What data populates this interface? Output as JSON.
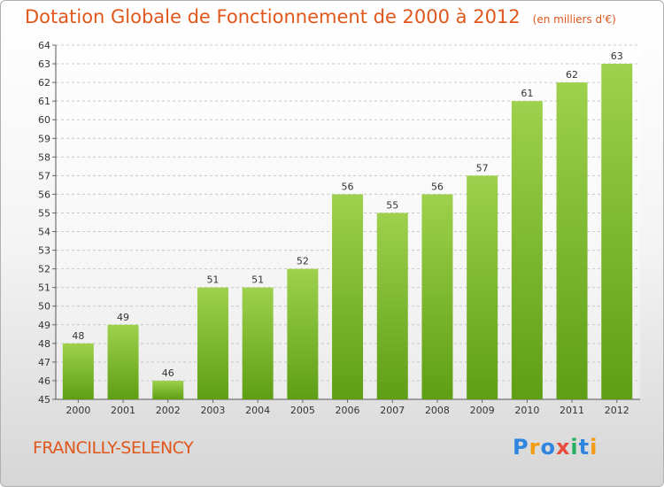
{
  "chart_data": {
    "type": "bar",
    "title": "Dotation Globale de Fonctionnement de 2000 à 2012",
    "subtitle": "(en milliers d'€)",
    "categories": [
      "2000",
      "2001",
      "2002",
      "2003",
      "2004",
      "2005",
      "2006",
      "2007",
      "2008",
      "2009",
      "2010",
      "2011",
      "2012"
    ],
    "values": [
      48,
      49,
      46,
      51,
      51,
      52,
      56,
      55,
      56,
      57,
      61,
      62,
      63
    ],
    "ylim": [
      45,
      64
    ],
    "yticks": [
      45,
      46,
      47,
      48,
      49,
      50,
      51,
      52,
      53,
      54,
      55,
      56,
      57,
      58,
      59,
      60,
      61,
      62,
      63,
      64
    ],
    "grid": true,
    "data_labels": true,
    "colors": {
      "bar_top": "#9ed14d",
      "bar_bottom": "#5e9e14",
      "title": "#e0571c"
    }
  },
  "commune": "FRANCILLY-SELENCY",
  "brand": {
    "name": "Proxiti",
    "letters": [
      {
        "ch": "P",
        "color": "#2e86de"
      },
      {
        "ch": "r",
        "color": "#f39c12"
      },
      {
        "ch": "o",
        "color": "#2e86de"
      },
      {
        "ch": "x",
        "color": "#e74c3c"
      },
      {
        "ch": "i",
        "color": "#27ae60"
      },
      {
        "ch": "t",
        "color": "#2e86de"
      },
      {
        "ch": "i",
        "color": "#f39c12"
      }
    ]
  }
}
